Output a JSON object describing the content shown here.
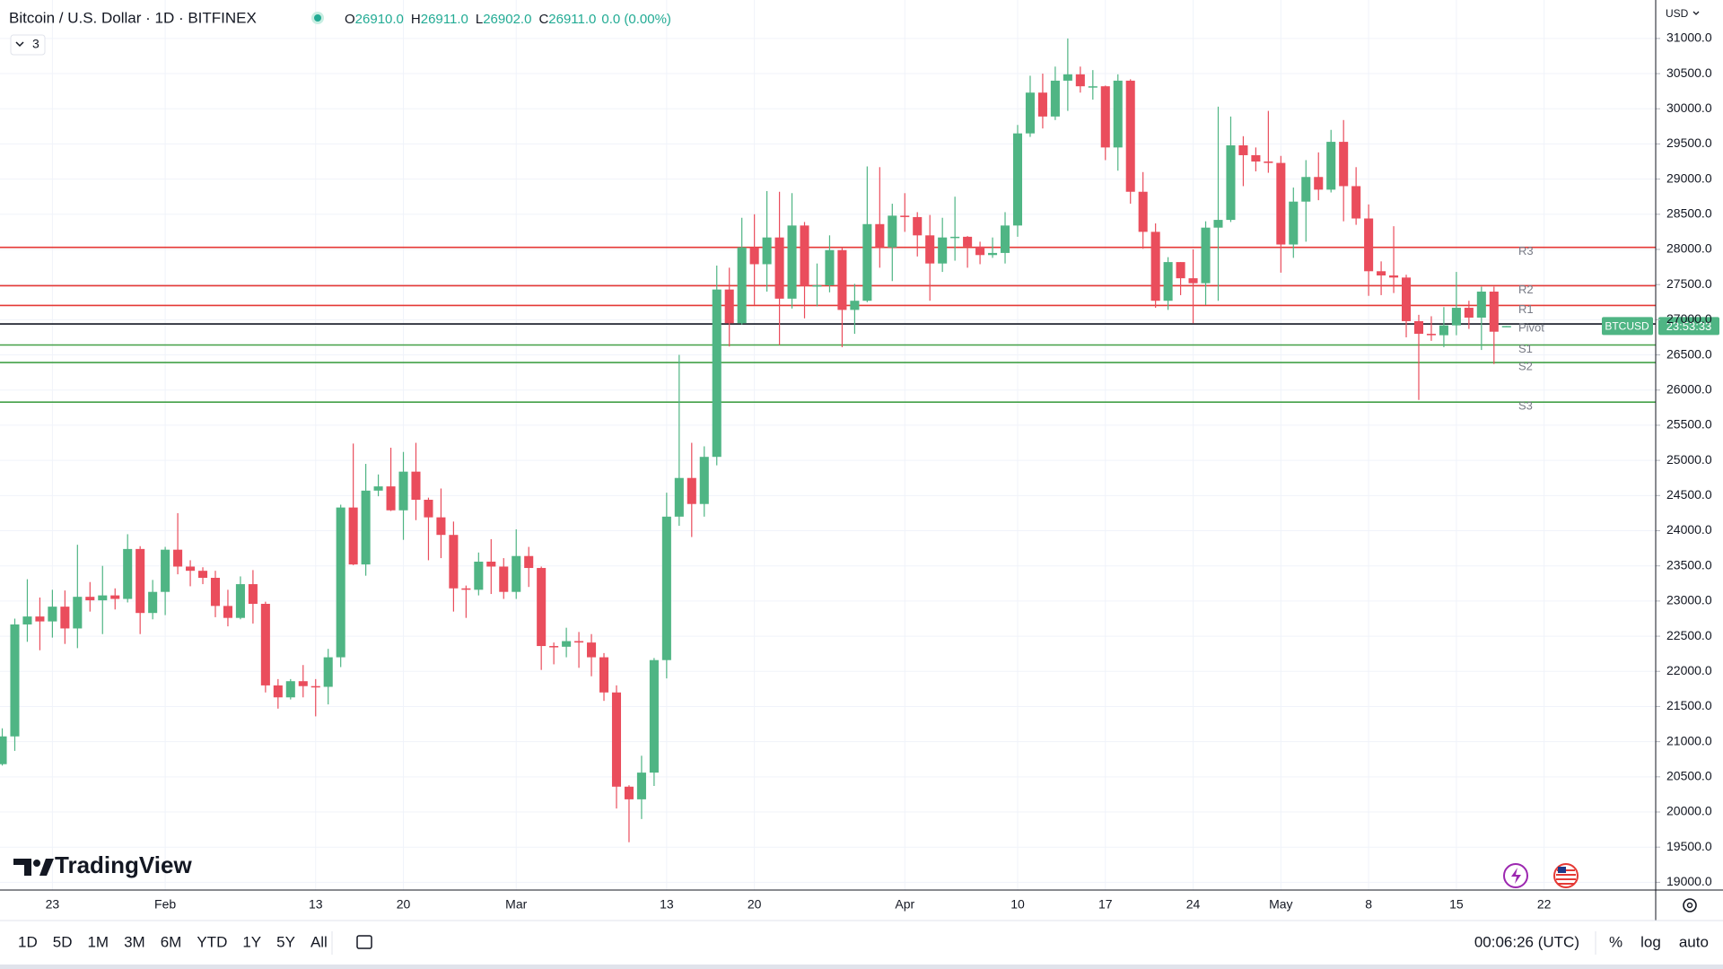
{
  "header": {
    "symbol": "Bitcoin / U.S. Dollar · 1D · BITFINEX",
    "ohlc": [
      {
        "key": "O",
        "value": "26910.0"
      },
      {
        "key": "H",
        "value": "26911.0"
      },
      {
        "key": "L",
        "value": "26902.0"
      },
      {
        "key": "C",
        "value": "26911.0"
      }
    ],
    "change": "0.0 (0.00%)",
    "indicators": "3",
    "currency": "USD"
  },
  "logo": "TradingView",
  "toolbar": {
    "ranges": [
      "1D",
      "5D",
      "1M",
      "3M",
      "6M",
      "YTD",
      "1Y",
      "5Y",
      "All"
    ],
    "time": "00:06:26 (UTC)",
    "options": [
      "%",
      "log",
      "auto"
    ]
  },
  "chart_data": {
    "type": "candlestick",
    "grid": true,
    "series": [
      {
        "name": "BTCUSD",
        "up_color": "#4fb584",
        "down_color": "#ea4d5c",
        "open": [
          20680,
          21075,
          22667,
          22780,
          22710,
          22920,
          22610,
          23060,
          23010,
          23080,
          23030,
          23740,
          22830,
          23130,
          23730,
          23490,
          23430,
          23330,
          22930,
          22760,
          23240,
          22960,
          21800,
          21630,
          21860,
          21790,
          21780,
          22200,
          24330,
          23520,
          24570,
          24630,
          24290,
          24840,
          24440,
          24190,
          23940,
          23180,
          23160,
          23560,
          23490,
          23130,
          23640,
          23470,
          22360,
          22350,
          22430,
          22410,
          22200,
          21700,
          20360,
          20180,
          20560,
          22160,
          24200,
          24750,
          24380,
          25050,
          27430,
          26950,
          28030,
          27790,
          28170,
          27300,
          28340,
          27480,
          27490,
          27990,
          27140,
          27270,
          28360,
          28030,
          28480,
          28460,
          28200,
          27800,
          28170,
          28180,
          28040,
          27920,
          27950,
          28340,
          29650,
          30230,
          29890,
          30400,
          30490,
          30320,
          30320,
          29450,
          30400,
          28820,
          28250,
          27270,
          27820,
          27590,
          27520,
          28310,
          28420,
          29480,
          29340,
          29250,
          29230,
          28070,
          28680,
          29030,
          28850,
          29530,
          28900,
          28440,
          27690,
          27630,
          27600,
          26980,
          26800,
          26780,
          26920,
          27170,
          27030,
          27400,
          26910
        ],
        "high": [
          21190,
          22750,
          23310,
          23050,
          23160,
          23150,
          23800,
          23270,
          23500,
          23180,
          23950,
          23780,
          23300,
          23770,
          24250,
          23580,
          23480,
          23430,
          23160,
          23350,
          23440,
          22990,
          21890,
          21890,
          22090,
          21890,
          22320,
          24370,
          25240,
          24950,
          24800,
          25180,
          25120,
          25250,
          24470,
          24600,
          24130,
          23220,
          23690,
          23880,
          23610,
          24020,
          23770,
          23490,
          22410,
          22620,
          22560,
          22530,
          22260,
          21800,
          20380,
          20800,
          22190,
          24540,
          26500,
          25250,
          25200,
          27770,
          27740,
          28450,
          28500,
          28830,
          28820,
          28800,
          28390,
          27800,
          28200,
          28030,
          27510,
          29180,
          29170,
          28650,
          28800,
          28530,
          28490,
          28450,
          28750,
          28190,
          28110,
          28170,
          28530,
          29770,
          30470,
          30500,
          30600,
          31000,
          30600,
          30550,
          30330,
          30490,
          30420,
          29100,
          28370,
          27890,
          27820,
          28000,
          28400,
          30030,
          29890,
          29610,
          29450,
          29970,
          29330,
          28880,
          29270,
          29380,
          29700,
          29840,
          29170,
          28640,
          27830,
          28330,
          27640,
          27070,
          27050,
          27180,
          27680,
          27270,
          27470,
          27470,
          26911
        ],
        "low": [
          20660,
          20870,
          22420,
          22300,
          22480,
          22390,
          22330,
          22850,
          22530,
          22880,
          22980,
          22530,
          22740,
          22800,
          23380,
          23210,
          23240,
          22770,
          22640,
          22740,
          22680,
          21700,
          21470,
          21600,
          21630,
          21360,
          21530,
          22060,
          23510,
          23360,
          24490,
          24280,
          23870,
          24150,
          23580,
          23610,
          22850,
          22760,
          23080,
          23100,
          23030,
          23030,
          23200,
          22020,
          22100,
          22200,
          22050,
          21930,
          21580,
          20050,
          19570,
          19900,
          20370,
          21900,
          24070,
          23910,
          24200,
          24930,
          26620,
          26930,
          27210,
          27400,
          26640,
          27160,
          27020,
          27190,
          27390,
          26610,
          26800,
          27250,
          27740,
          27550,
          28250,
          27900,
          27270,
          27680,
          27840,
          27740,
          27790,
          27880,
          27800,
          28180,
          29600,
          29720,
          29840,
          29970,
          30230,
          30130,
          29270,
          29120,
          28650,
          28010,
          27170,
          27140,
          27350,
          26950,
          27210,
          27270,
          28390,
          28900,
          29110,
          29090,
          27670,
          27880,
          28110,
          28700,
          28810,
          28400,
          28350,
          27340,
          27350,
          27380,
          26750,
          25860,
          26700,
          26610,
          26780,
          26870,
          26570,
          26370,
          26902
        ],
        "close": [
          21075,
          22667,
          22780,
          22710,
          22920,
          22610,
          23060,
          23010,
          23080,
          23030,
          23740,
          22830,
          23130,
          23730,
          23490,
          23430,
          23330,
          22930,
          22760,
          23240,
          22960,
          21800,
          21630,
          21860,
          21790,
          21780,
          22200,
          24330,
          23520,
          24570,
          24630,
          24290,
          24840,
          24440,
          24190,
          23940,
          23180,
          23160,
          23560,
          23490,
          23130,
          23640,
          23470,
          22360,
          22350,
          22430,
          22410,
          22200,
          21700,
          20360,
          20180,
          20560,
          22160,
          24200,
          24750,
          24380,
          25050,
          27430,
          26950,
          28030,
          27790,
          28170,
          27300,
          28340,
          27480,
          27490,
          27990,
          27140,
          27270,
          28360,
          28030,
          28480,
          28460,
          28200,
          27800,
          28170,
          28180,
          28040,
          27920,
          27950,
          28340,
          29650,
          30230,
          29890,
          30400,
          30490,
          30320,
          30320,
          29450,
          30400,
          28820,
          28250,
          27270,
          27820,
          27590,
          27520,
          28310,
          28420,
          29480,
          29340,
          29250,
          29230,
          28070,
          28680,
          29030,
          28850,
          29530,
          28900,
          28440,
          27690,
          27630,
          27600,
          26980,
          26800,
          26780,
          26920,
          27170,
          27030,
          27400,
          26830,
          26911
        ]
      }
    ],
    "countdown": "23:53:33",
    "levels": [
      {
        "name": "R3",
        "value": 28030,
        "color": "#e53935"
      },
      {
        "name": "R2",
        "value": 27484,
        "color": "#e53935"
      },
      {
        "name": "R1",
        "value": 27203,
        "color": "#e53935"
      },
      {
        "name": "Pivot",
        "value": 26940,
        "color": "#131722"
      },
      {
        "name": "S1",
        "value": 26641,
        "color": "#43a047"
      },
      {
        "name": "S2",
        "value": 26391,
        "color": "#43a047"
      },
      {
        "name": "S3",
        "value": 25828,
        "color": "#43a047"
      }
    ],
    "xlim": [
      -0.18,
      131.9
    ],
    "xticks": [
      {
        "value": 4,
        "label": "23"
      },
      {
        "value": 13,
        "label": "Feb"
      },
      {
        "value": 25,
        "label": "13"
      },
      {
        "value": 32,
        "label": "20"
      },
      {
        "value": 41,
        "label": "Mar"
      },
      {
        "value": 53,
        "label": "13"
      },
      {
        "value": 60,
        "label": "20"
      },
      {
        "value": 72,
        "label": "Apr"
      },
      {
        "value": 81,
        "label": "10"
      },
      {
        "value": 88,
        "label": "17"
      },
      {
        "value": 95,
        "label": "24"
      },
      {
        "value": 102,
        "label": "May"
      },
      {
        "value": 109,
        "label": "8"
      },
      {
        "value": 116,
        "label": "15"
      },
      {
        "value": 123,
        "label": "22"
      }
    ],
    "ylim": [
      18890,
      31547
    ],
    "yticks": [
      {
        "value": 19000,
        "label": "19000.0"
      },
      {
        "value": 19500,
        "label": "19500.0"
      },
      {
        "value": 20000,
        "label": "20000.0"
      },
      {
        "value": 20500,
        "label": "20500.0"
      },
      {
        "value": 21000,
        "label": "21000.0"
      },
      {
        "value": 21500,
        "label": "21500.0"
      },
      {
        "value": 22000,
        "label": "22000.0"
      },
      {
        "value": 22500,
        "label": "22500.0"
      },
      {
        "value": 23000,
        "label": "23000.0"
      },
      {
        "value": 23500,
        "label": "23500.0"
      },
      {
        "value": 24000,
        "label": "24000.0"
      },
      {
        "value": 24500,
        "label": "24500.0"
      },
      {
        "value": 25000,
        "label": "25000.0"
      },
      {
        "value": 25500,
        "label": "25500.0"
      },
      {
        "value": 26000,
        "label": "26000.0"
      },
      {
        "value": 26500,
        "label": "26500.0"
      },
      {
        "value": 27000,
        "label": "27000.0"
      },
      {
        "value": 27500,
        "label": "27500.0"
      },
      {
        "value": 28000,
        "label": "28000.0"
      },
      {
        "value": 28500,
        "label": "28500.0"
      },
      {
        "value": 29000,
        "label": "29000.0"
      },
      {
        "value": 29500,
        "label": "29500.0"
      },
      {
        "value": 30000,
        "label": "30000.0"
      },
      {
        "value": 30500,
        "label": "30500.0"
      },
      {
        "value": 31000,
        "label": "31000.0"
      }
    ]
  }
}
